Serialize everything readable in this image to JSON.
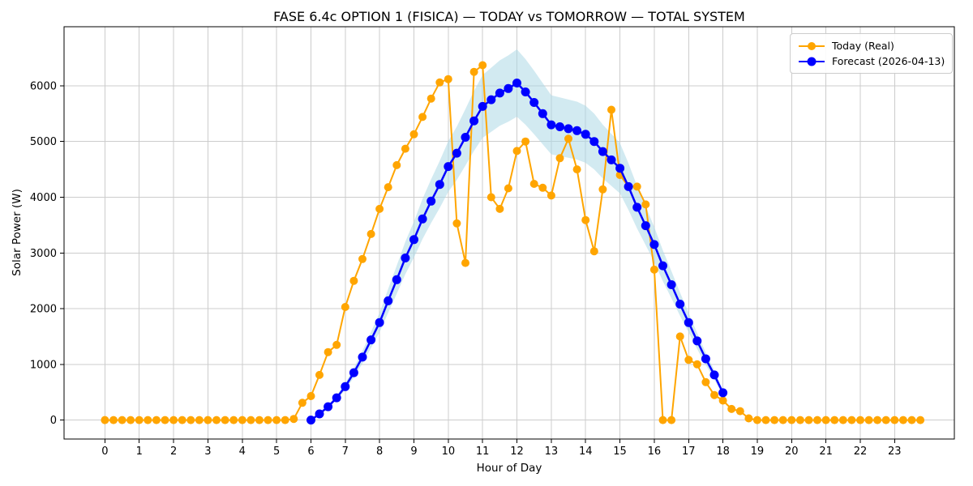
{
  "title": "FASE 6.4c OPTION 1 (FISICA) — TODAY vs TOMORROW — TOTAL SYSTEM",
  "colors": {
    "today": "#FFA500",
    "forecast": "#0000FF",
    "band": "#ADD8E6",
    "grid": "#CCCCCC",
    "spine": "#000000",
    "background": "#FFFFFF",
    "legend_border": "#CCCCCC"
  },
  "legend": {
    "position": "upper right",
    "entries": [
      {
        "label": "Today (Real)",
        "color_key": "today"
      },
      {
        "label": "Forecast (2026-04-13)",
        "color_key": "forecast"
      }
    ]
  },
  "chart_data": {
    "type": "line",
    "title": "FASE 6.4c OPTION 1 (FISICA) — TODAY vs TOMORROW — TOTAL SYSTEM",
    "xlabel": "Hour of Day",
    "ylabel": "Solar Power (W)",
    "xlim": [
      -1.19,
      24.74
    ],
    "ylim": [
      -340,
      7060
    ],
    "xticks": [
      0,
      1,
      2,
      3,
      4,
      5,
      6,
      7,
      8,
      9,
      10,
      11,
      12,
      13,
      14,
      15,
      16,
      17,
      18,
      19,
      20,
      21,
      22,
      23
    ],
    "yticks": [
      0,
      1000,
      2000,
      3000,
      4000,
      5000,
      6000
    ],
    "grid": true,
    "legend_position": "upper right",
    "series": [
      {
        "name": "Today (Real)",
        "color": "#FFA500",
        "marker": "circle",
        "marker_radius": 5,
        "line_width": 2,
        "x_start": 0.0,
        "x_step": 0.25,
        "values": [
          0,
          0,
          0,
          0,
          0,
          0,
          0,
          0,
          0,
          0,
          0,
          0,
          0,
          0,
          0,
          0,
          0,
          0,
          0,
          0,
          0,
          0,
          20,
          310,
          430,
          810,
          1220,
          1350,
          2030,
          2500,
          2890,
          3340,
          3790,
          4180,
          4575,
          4870,
          5130,
          5440,
          5770,
          6060,
          6120,
          3530,
          2820,
          6250,
          6370,
          4000,
          3790,
          4160,
          4830,
          5000,
          4240,
          4170,
          4030,
          4700,
          5050,
          4500,
          3590,
          3030,
          4140,
          5570,
          4400,
          4190,
          4190,
          3870,
          2700,
          0,
          0,
          1500,
          1080,
          1000,
          680,
          450,
          350,
          200,
          160,
          30,
          0,
          0,
          0,
          0,
          0,
          0,
          0,
          0,
          0,
          0,
          0,
          0,
          0,
          0,
          0,
          0,
          0,
          0,
          0,
          0
        ]
      },
      {
        "name": "Forecast (2026-04-13)",
        "color": "#0000FF",
        "marker": "circle",
        "marker_radius": 5.5,
        "line_width": 2.5,
        "x_start": 6.0,
        "x_step": 0.25,
        "values": [
          0,
          110,
          240,
          400,
          600,
          850,
          1130,
          1440,
          1750,
          2140,
          2520,
          2910,
          3240,
          3610,
          3930,
          4230,
          4550,
          4790,
          5075,
          5370,
          5630,
          5750,
          5870,
          5950,
          6050,
          5890,
          5700,
          5500,
          5300,
          5265,
          5230,
          5195,
          5130,
          5000,
          4820,
          4670,
          4520,
          4190,
          3820,
          3490,
          3150,
          2770,
          2430,
          2080,
          1750,
          1420,
          1100,
          810,
          490
        ],
        "band": {
          "lower_factor": 0.9,
          "upper_factor": 1.1,
          "color": "#ADD8E6",
          "opacity": 0.55
        }
      }
    ]
  }
}
